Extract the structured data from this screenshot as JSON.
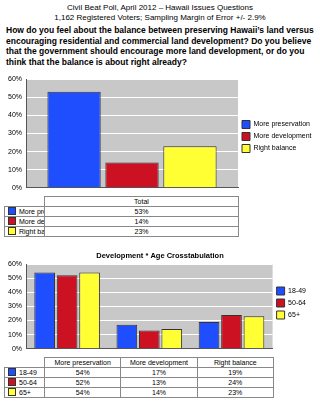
{
  "header": {
    "lines": [
      "Civil Beat Poll, April 2012 – Hawaii Issues Questions",
      "1,162 Registered Voters; Sampling Margin of Error +/- 2.9%"
    ],
    "question": "How do you feel about the balance between preserving Hawaii’s land versus encouraging residential and commercial land development? Do you believe that the government should encourage more land development, or do you think that the balance is about right already?"
  },
  "chart_data": [
    {
      "type": "bar",
      "categories": [
        "Total"
      ],
      "series": [
        {
          "name": "More preservation",
          "color": "#1f4eff",
          "values": [
            53
          ],
          "value_labels": [
            "53%"
          ]
        },
        {
          "name": "More development",
          "color": "#cc1122",
          "values": [
            14
          ],
          "value_labels": [
            "14%"
          ]
        },
        {
          "name": "Right balance",
          "color": "#ffff33",
          "values": [
            23
          ],
          "value_labels": [
            "23%"
          ]
        }
      ],
      "ylim": [
        0,
        60
      ],
      "yticks": [
        {
          "value": 0,
          "label": "0%"
        },
        {
          "value": 10,
          "label": "10%"
        },
        {
          "value": 20,
          "label": "20%"
        },
        {
          "value": 30,
          "label": "30%"
        },
        {
          "value": 40,
          "label": "40%"
        },
        {
          "value": 50,
          "label": "50%"
        },
        {
          "value": 60,
          "label": "60%"
        }
      ],
      "grid": true,
      "legend": "right",
      "tick_labels": "y"
    },
    {
      "type": "bar",
      "title": "Development * Age Crosstabulation",
      "categories": [
        "More preservation",
        "More development",
        "Right balance"
      ],
      "series": [
        {
          "name": "18-49",
          "color": "#1f4eff",
          "values": [
            54,
            17,
            19
          ],
          "value_labels": [
            "54%",
            "17%",
            "19%"
          ]
        },
        {
          "name": "50-64",
          "color": "#cc1122",
          "values": [
            52,
            13,
            24
          ],
          "value_labels": [
            "52%",
            "13%",
            "24%"
          ]
        },
        {
          "name": "65+",
          "color": "#ffff33",
          "values": [
            54,
            14,
            23
          ],
          "value_labels": [
            "54%",
            "14%",
            "23%"
          ]
        }
      ],
      "ylim": [
        0,
        60
      ],
      "yticks": [
        {
          "value": 0,
          "label": "0%"
        },
        {
          "value": 10,
          "label": "10%"
        },
        {
          "value": 20,
          "label": "20%"
        },
        {
          "value": 30,
          "label": "30%"
        },
        {
          "value": 40,
          "label": "40%"
        },
        {
          "value": 50,
          "label": "50%"
        },
        {
          "value": 60,
          "label": "60%"
        }
      ],
      "grid": true,
      "legend": "right",
      "tick_labels": "y"
    }
  ]
}
